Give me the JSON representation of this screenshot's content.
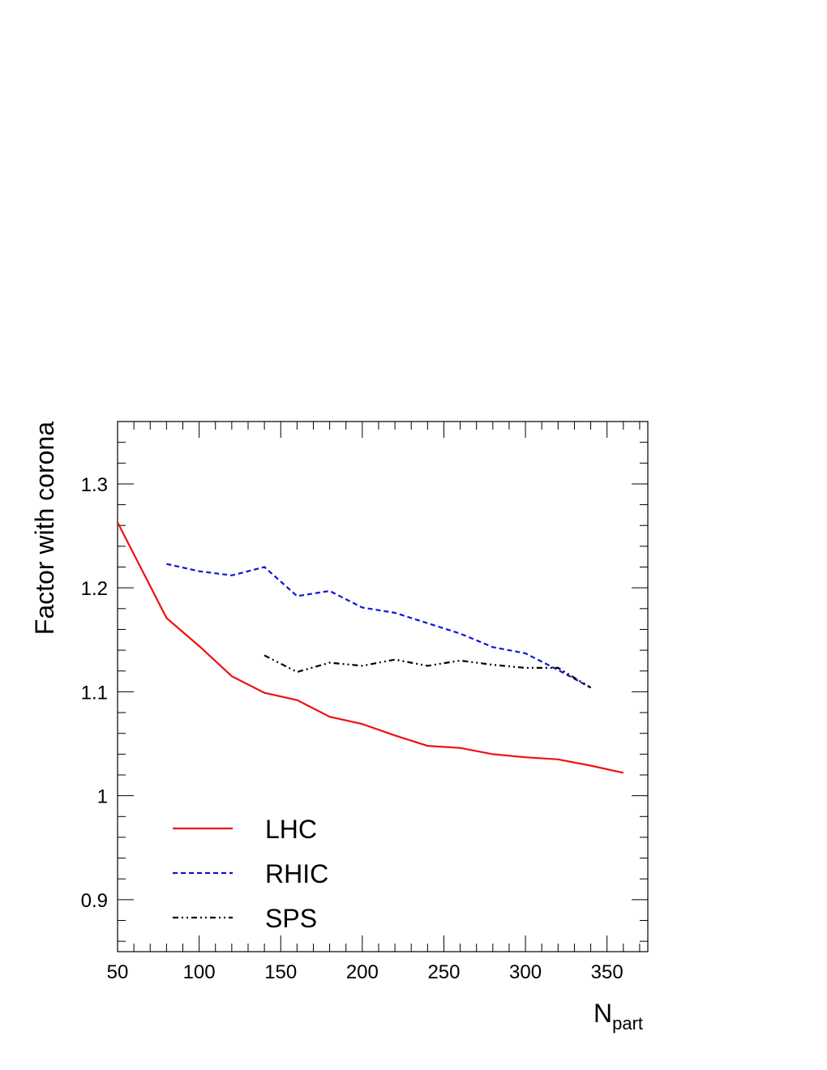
{
  "chart_data": {
    "type": "line",
    "title": "",
    "xlabel": "N",
    "xlabel_subscript": "part",
    "ylabel": "Factor with corona",
    "xlim": [
      50,
      375
    ],
    "ylim": [
      0.85,
      1.36
    ],
    "x_ticks": [
      50,
      100,
      150,
      200,
      250,
      300,
      350
    ],
    "x_tick_labels": [
      "50",
      "100",
      "150",
      "200",
      "250",
      "300",
      "350"
    ],
    "y_ticks": [
      0.9,
      1.0,
      1.1,
      1.2,
      1.3
    ],
    "y_tick_labels": [
      "0.9",
      "1",
      "1.1",
      "1.2",
      "1.3"
    ],
    "grid": false,
    "legend_position": "bottom-left",
    "series": [
      {
        "name": "LHC",
        "color": "#ee1111",
        "style": "solid",
        "x": [
          50,
          80,
          100,
          120,
          140,
          160,
          180,
          200,
          220,
          240,
          260,
          280,
          300,
          320,
          340,
          360
        ],
        "y": [
          1.263,
          1.171,
          1.144,
          1.115,
          1.099,
          1.092,
          1.076,
          1.069,
          1.058,
          1.048,
          1.046,
          1.04,
          1.037,
          1.035,
          1.029,
          1.022
        ]
      },
      {
        "name": "RHIC",
        "color": "#1111dd",
        "style": "dashed",
        "x": [
          80,
          100,
          120,
          140,
          160,
          180,
          200,
          220,
          240,
          260,
          280,
          300,
          320,
          340
        ],
        "y": [
          1.223,
          1.216,
          1.212,
          1.22,
          1.192,
          1.197,
          1.181,
          1.176,
          1.166,
          1.156,
          1.143,
          1.137,
          1.121,
          1.104
        ]
      },
      {
        "name": "SPS",
        "color": "#000000",
        "style": "dashdot",
        "x": [
          140,
          160,
          180,
          200,
          220,
          240,
          260,
          280,
          300,
          320,
          340
        ],
        "y": [
          1.135,
          1.119,
          1.128,
          1.125,
          1.131,
          1.125,
          1.13,
          1.126,
          1.123,
          1.123,
          1.104
        ]
      }
    ]
  }
}
